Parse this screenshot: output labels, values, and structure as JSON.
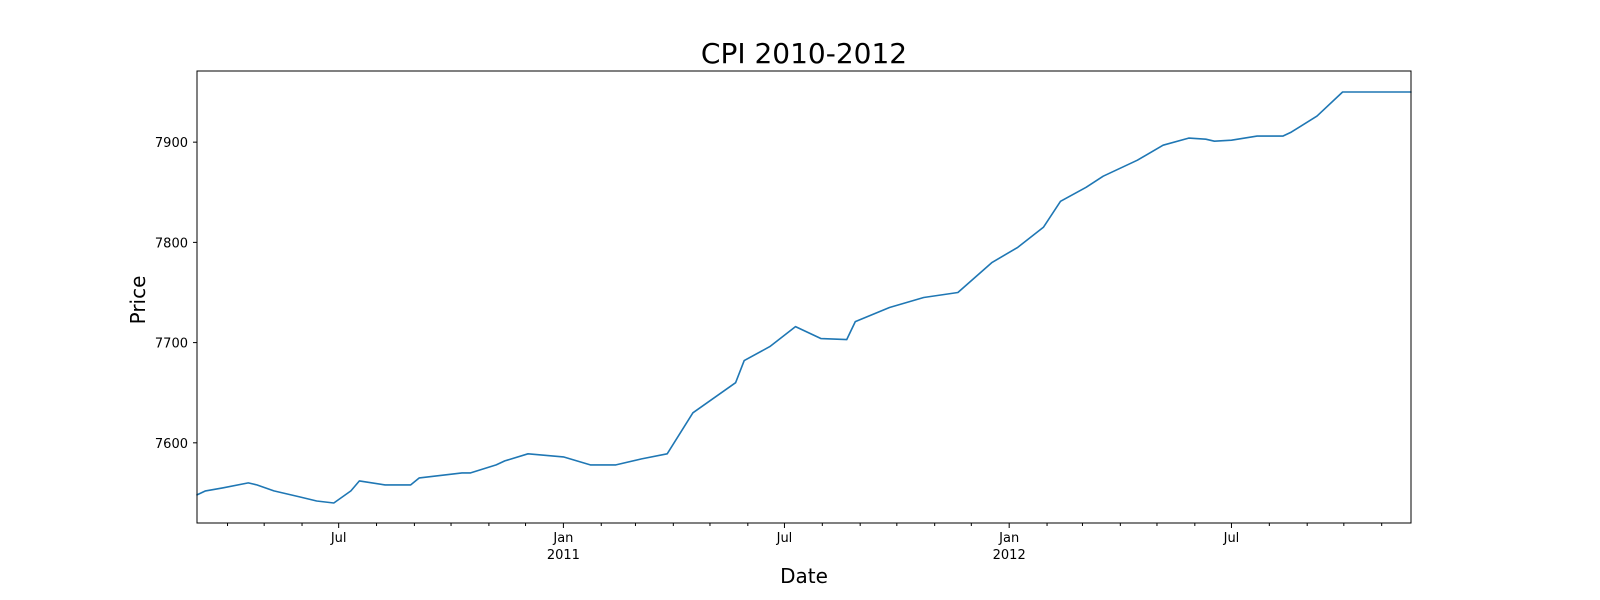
{
  "chart_data": {
    "type": "line",
    "title": "CPI 2010-2012",
    "xlabel": "Date",
    "ylabel": "Price",
    "xlim": [
      "2010-03-07",
      "2012-11-25"
    ],
    "ylim": [
      7520,
      7971
    ],
    "grid": false,
    "legend": "none",
    "line_color": "#1f77b4",
    "y_ticks": [
      7600,
      7700,
      7800,
      7900
    ],
    "x_ticks": [
      {
        "date": "2010-07-01",
        "label": "Jul",
        "sublabel": ""
      },
      {
        "date": "2011-01-01",
        "label": "Jan",
        "sublabel": "2011"
      },
      {
        "date": "2011-07-01",
        "label": "Jul",
        "sublabel": ""
      },
      {
        "date": "2012-01-01",
        "label": "Jan",
        "sublabel": "2012"
      },
      {
        "date": "2012-07-01",
        "label": "Jul",
        "sublabel": ""
      }
    ],
    "x_minor_ticks": [
      "2010-04-01",
      "2010-05-01",
      "2010-06-01",
      "2010-08-01",
      "2010-09-01",
      "2010-10-01",
      "2010-11-01",
      "2010-12-01",
      "2011-02-01",
      "2011-03-01",
      "2011-04-01",
      "2011-05-01",
      "2011-06-01",
      "2011-08-01",
      "2011-09-01",
      "2011-10-01",
      "2011-11-01",
      "2011-12-01",
      "2012-02-01",
      "2012-03-01",
      "2012-04-01",
      "2012-05-01",
      "2012-06-01",
      "2012-08-01",
      "2012-09-01",
      "2012-10-01",
      "2012-11-01"
    ],
    "series": [
      {
        "x": [
          "2010-03-07",
          "2010-03-14",
          "2010-03-28",
          "2010-04-18",
          "2010-04-25",
          "2010-05-09",
          "2010-05-30",
          "2010-06-13",
          "2010-06-27",
          "2010-07-11",
          "2010-07-18",
          "2010-08-08",
          "2010-08-29",
          "2010-09-05",
          "2010-10-10",
          "2010-10-17",
          "2010-11-07",
          "2010-11-14",
          "2010-12-03",
          "2011-01-01",
          "2011-01-23",
          "2011-02-13",
          "2011-03-06",
          "2011-03-27",
          "2011-04-17",
          "2011-05-22",
          "2011-05-29",
          "2011-06-19",
          "2011-07-10",
          "2011-07-31",
          "2011-08-21",
          "2011-08-28",
          "2011-09-25",
          "2011-10-23",
          "2011-11-20",
          "2011-12-18",
          "2012-01-08",
          "2012-01-29",
          "2012-02-12",
          "2012-03-04",
          "2012-03-18",
          "2012-04-15",
          "2012-05-06",
          "2012-05-27",
          "2012-06-10",
          "2012-06-17",
          "2012-07-01",
          "2012-07-22",
          "2012-07-29",
          "2012-08-12",
          "2012-08-19",
          "2012-09-09",
          "2012-09-30",
          "2012-10-14",
          "2012-11-25"
        ],
        "y": [
          7548,
          7552,
          7555,
          7560,
          7558,
          7552,
          7546,
          7542,
          7540,
          7552,
          7562,
          7558,
          7558,
          7565,
          7570,
          7570,
          7578,
          7582,
          7589,
          7586,
          7578,
          7578,
          7584,
          7589,
          7630,
          7660,
          7682,
          7696,
          7716,
          7704,
          7703,
          7721,
          7735,
          7745,
          7750,
          7780,
          7795,
          7815,
          7841,
          7855,
          7866,
          7882,
          7897,
          7904,
          7903,
          7901,
          7902,
          7906,
          7906,
          7906,
          7910,
          7926,
          7950,
          7950,
          7950
        ]
      }
    ]
  }
}
